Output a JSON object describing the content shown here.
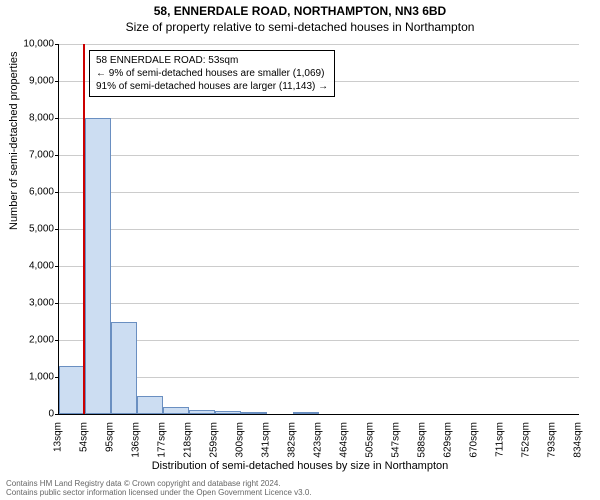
{
  "title_line1": "58, ENNERDALE ROAD, NORTHAMPTON, NN3 6BD",
  "title_line2": "Size of property relative to semi-detached houses in Northampton",
  "y_axis_label": "Number of semi-detached properties",
  "x_axis_label": "Distribution of semi-detached houses by size in Northampton",
  "annotation": {
    "line1": "58 ENNERDALE ROAD: 53sqm",
    "line2": "← 9% of semi-detached houses are smaller (1,069)",
    "line3": "91% of semi-detached houses are larger (11,143) →"
  },
  "footer": {
    "line1": "Contains HM Land Registry data © Crown copyright and database right 2024.",
    "line2": "Contains public sector information licensed under the Open Government Licence v3.0."
  },
  "chart": {
    "type": "histogram",
    "ylim": [
      0,
      10000
    ],
    "ytick_step": 1000,
    "y_ticks": [
      0,
      1000,
      2000,
      3000,
      4000,
      5000,
      6000,
      7000,
      8000,
      9000,
      10000
    ],
    "x_categories": [
      "13sqm",
      "54sqm",
      "95sqm",
      "136sqm",
      "177sqm",
      "218sqm",
      "259sqm",
      "300sqm",
      "341sqm",
      "382sqm",
      "423sqm",
      "464sqm",
      "505sqm",
      "547sqm",
      "588sqm",
      "629sqm",
      "670sqm",
      "711sqm",
      "752sqm",
      "793sqm",
      "834sqm"
    ],
    "bar_values": [
      1300,
      8000,
      2500,
      500,
      200,
      100,
      80,
      50,
      0,
      30,
      0,
      0,
      0,
      0,
      0,
      0,
      0,
      0,
      0,
      0
    ],
    "highlight_x_sqm": 53,
    "x_min_sqm": 13,
    "x_max_sqm": 834,
    "bar_fill_color": "#ccddf2",
    "bar_border_color": "#6a8fc1",
    "highlight_color": "#cc0000",
    "grid_color": "#cccccc",
    "background_color": "#ffffff",
    "font_family": "Arial, sans-serif",
    "title_fontsize": 12,
    "axis_label_fontsize": 11,
    "tick_fontsize": 10,
    "annotation_fontsize": 10,
    "footer_fontsize": 8,
    "footer_color": "#666666"
  }
}
